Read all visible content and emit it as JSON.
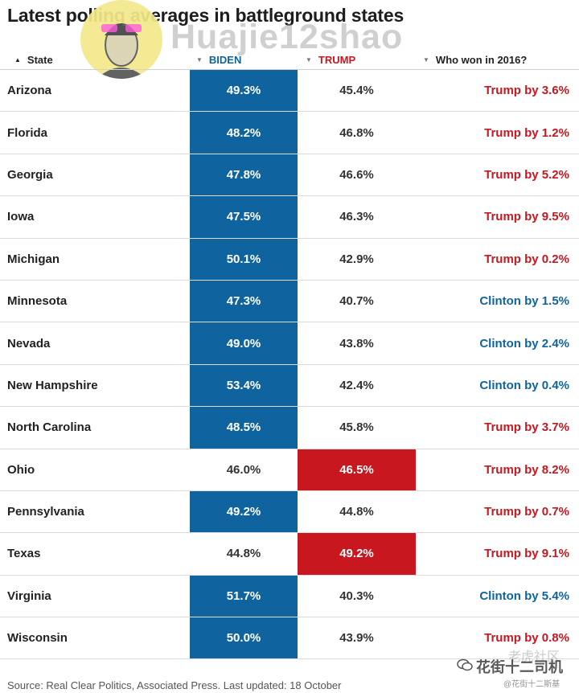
{
  "title": "Latest polling averages in battleground states",
  "watermark": "Huajie12shao",
  "columns": {
    "state": "State",
    "biden": "BIDEN",
    "trump": "TRUMP",
    "won": "Who won in 2016?"
  },
  "colors": {
    "biden": "#0f64a0",
    "trump": "#c8171e"
  },
  "chart_data": {
    "type": "table",
    "title": "Latest polling averages in battleground states",
    "columns": [
      "State",
      "BIDEN",
      "TRUMP",
      "Who won in 2016?"
    ],
    "rows": [
      {
        "state": "Arizona",
        "biden": "49.3%",
        "trump": "45.4%",
        "won": "Trump by 3.6%",
        "winner2016": "trump",
        "leader": "biden"
      },
      {
        "state": "Florida",
        "biden": "48.2%",
        "trump": "46.8%",
        "won": "Trump by 1.2%",
        "winner2016": "trump",
        "leader": "biden"
      },
      {
        "state": "Georgia",
        "biden": "47.8%",
        "trump": "46.6%",
        "won": "Trump by 5.2%",
        "winner2016": "trump",
        "leader": "biden"
      },
      {
        "state": "Iowa",
        "biden": "47.5%",
        "trump": "46.3%",
        "won": "Trump by 9.5%",
        "winner2016": "trump",
        "leader": "biden"
      },
      {
        "state": "Michigan",
        "biden": "50.1%",
        "trump": "42.9%",
        "won": "Trump by 0.2%",
        "winner2016": "trump",
        "leader": "biden"
      },
      {
        "state": "Minnesota",
        "biden": "47.3%",
        "trump": "40.7%",
        "won": "Clinton by 1.5%",
        "winner2016": "clinton",
        "leader": "biden"
      },
      {
        "state": "Nevada",
        "biden": "49.0%",
        "trump": "43.8%",
        "won": "Clinton by 2.4%",
        "winner2016": "clinton",
        "leader": "biden"
      },
      {
        "state": "New Hampshire",
        "biden": "53.4%",
        "trump": "42.4%",
        "won": "Clinton by 0.4%",
        "winner2016": "clinton",
        "leader": "biden"
      },
      {
        "state": "North Carolina",
        "biden": "48.5%",
        "trump": "45.8%",
        "won": "Trump by 3.7%",
        "winner2016": "trump",
        "leader": "biden"
      },
      {
        "state": "Ohio",
        "biden": "46.0%",
        "trump": "46.5%",
        "won": "Trump by 8.2%",
        "winner2016": "trump",
        "leader": "trump"
      },
      {
        "state": "Pennsylvania",
        "biden": "49.2%",
        "trump": "44.8%",
        "won": "Trump by 0.7%",
        "winner2016": "trump",
        "leader": "biden"
      },
      {
        "state": "Texas",
        "biden": "44.8%",
        "trump": "49.2%",
        "won": "Trump by 9.1%",
        "winner2016": "trump",
        "leader": "trump"
      },
      {
        "state": "Virginia",
        "biden": "51.7%",
        "trump": "40.3%",
        "won": "Clinton by 5.4%",
        "winner2016": "clinton",
        "leader": "biden"
      },
      {
        "state": "Wisconsin",
        "biden": "50.0%",
        "trump": "43.9%",
        "won": "Trump by 0.8%",
        "winner2016": "trump",
        "leader": "biden"
      }
    ]
  },
  "source": "Source: Real Clear Politics, Associated Press. Last updated: 18 October",
  "overlay_watermark": {
    "main": "花街十二司机",
    "small": "@花街十二斯基",
    "faint": "老虎社区"
  }
}
